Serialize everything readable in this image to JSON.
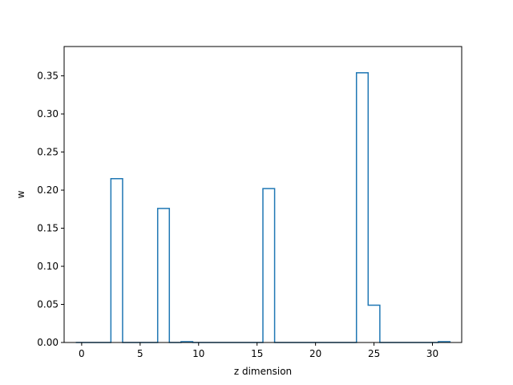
{
  "chart_data": {
    "type": "bar",
    "style": "step-histogram",
    "title": "",
    "xlabel": "z dimension",
    "ylabel": "w",
    "xlim": [
      -1.5,
      32.5
    ],
    "ylim": [
      0,
      0.3885
    ],
    "x_ticks": [
      0,
      5,
      10,
      15,
      20,
      25,
      30
    ],
    "y_ticks": [
      0.0,
      0.05,
      0.1,
      0.15,
      0.2,
      0.25,
      0.3,
      0.35
    ],
    "grid": false,
    "legend": false,
    "line_color": "#1f77b4",
    "series": [
      {
        "x": [
          0,
          1,
          2,
          3,
          4,
          5,
          6,
          7,
          8,
          9,
          10,
          11,
          12,
          13,
          14,
          15,
          16,
          17,
          18,
          19,
          20,
          21,
          22,
          23,
          24,
          25,
          26,
          27,
          28,
          29,
          30,
          31
        ],
        "values": [
          0,
          0,
          0,
          0.215,
          0,
          0,
          0,
          0.176,
          0,
          0.001,
          0,
          0,
          0,
          0,
          0,
          0,
          0.202,
          0,
          0,
          0,
          0,
          0,
          0,
          0,
          0.354,
          0.049,
          0,
          0,
          0,
          0,
          0,
          0.001
        ]
      }
    ]
  }
}
